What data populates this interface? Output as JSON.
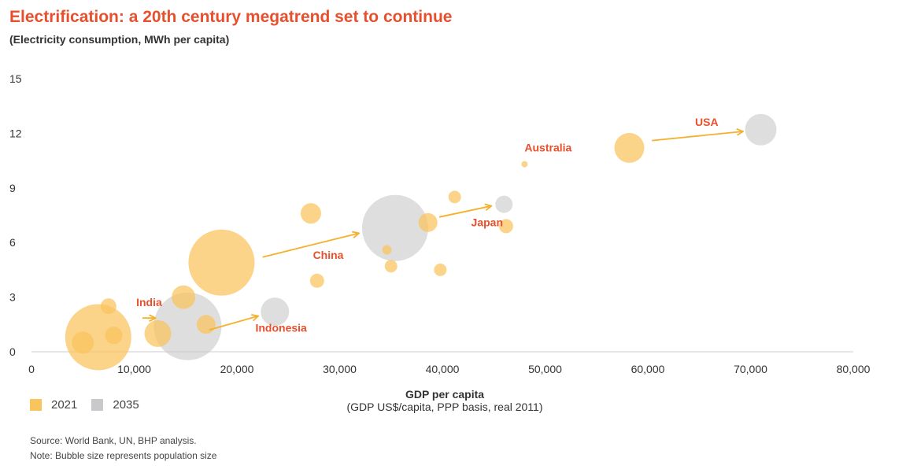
{
  "header": {
    "title": "Electrification: a 20th century megatrend set to continue",
    "subtitle": "(Electricity consumption, MWh per capita)"
  },
  "colors": {
    "y2021": "#f9c45c",
    "y2035": "#c9c9cb",
    "accent": "#e8502d",
    "arrow": "#f5b02c"
  },
  "legend": {
    "items": [
      {
        "label": "2021"
      },
      {
        "label": "2035"
      }
    ]
  },
  "axis": {
    "xlabel": "GDP per capita",
    "xlabel_sub": "(GDP US$/capita, PPP basis, real 2011)"
  },
  "footer": {
    "source": "Source: World Bank, UN, BHP analysis.",
    "note": "Note: Bubble size represents population size"
  },
  "chart_data": {
    "type": "scatter",
    "title": "Electrification: a 20th century megatrend set to continue",
    "subtitle": "(Electricity consumption, MWh per capita)",
    "xlabel": "GDP per capita",
    "xlabel_sub": "(GDP US$/capita, PPP basis, real 2011)",
    "xlim": [
      0,
      80000
    ],
    "ylim": [
      0,
      15
    ],
    "xticks": [
      0,
      10000,
      20000,
      30000,
      40000,
      50000,
      60000,
      70000,
      80000
    ],
    "xtick_labels": [
      "0",
      "10,000",
      "20,000",
      "30,000",
      "40,000",
      "50,000",
      "60,000",
      "70,000",
      "80,000"
    ],
    "yticks": [
      0,
      3,
      6,
      9,
      12,
      15
    ],
    "ytick_labels": [
      "0",
      "3",
      "6",
      "9",
      "12",
      "15"
    ],
    "bubble_size_meaning": "population",
    "series": [
      {
        "name": "2021",
        "points": [
          {
            "x": 6500,
            "y": 0.8,
            "r": 42
          },
          {
            "x": 5000,
            "y": 0.5,
            "r": 14
          },
          {
            "x": 7500,
            "y": 2.5,
            "r": 10
          },
          {
            "x": 8000,
            "y": 0.9,
            "r": 11
          },
          {
            "x": 12300,
            "y": 1.0,
            "r": 17
          },
          {
            "x": 14800,
            "y": 3.0,
            "r": 15
          },
          {
            "x": 17000,
            "y": 1.5,
            "r": 12
          },
          {
            "x": 18500,
            "y": 4.9,
            "r": 42
          },
          {
            "x": 27200,
            "y": 7.6,
            "r": 13
          },
          {
            "x": 27800,
            "y": 3.9,
            "r": 9
          },
          {
            "x": 34600,
            "y": 5.6,
            "r": 6
          },
          {
            "x": 35000,
            "y": 4.7,
            "r": 8
          },
          {
            "x": 38600,
            "y": 7.1,
            "r": 12
          },
          {
            "x": 39800,
            "y": 4.5,
            "r": 8
          },
          {
            "x": 41200,
            "y": 8.5,
            "r": 8
          },
          {
            "x": 46200,
            "y": 6.9,
            "r": 9
          },
          {
            "x": 48000,
            "y": 10.3,
            "r": 4
          },
          {
            "x": 58200,
            "y": 11.2,
            "r": 19
          }
        ]
      },
      {
        "name": "2035",
        "points": [
          {
            "x": 15200,
            "y": 1.4,
            "r": 43
          },
          {
            "x": 23700,
            "y": 2.2,
            "r": 18
          },
          {
            "x": 35400,
            "y": 6.8,
            "r": 42
          },
          {
            "x": 46000,
            "y": 8.1,
            "r": 11
          },
          {
            "x": 71000,
            "y": 12.2,
            "r": 20
          }
        ]
      }
    ],
    "arrows": [
      {
        "from": [
          10800,
          1.85
        ],
        "to": [
          12000,
          1.85
        ]
      },
      {
        "from": [
          17300,
          1.2
        ],
        "to": [
          22000,
          1.95
        ]
      },
      {
        "from": [
          22500,
          5.2
        ],
        "to": [
          31800,
          6.5
        ]
      },
      {
        "from": [
          39700,
          7.4
        ],
        "to": [
          44700,
          8.0
        ]
      },
      {
        "from": [
          60400,
          11.6
        ],
        "to": [
          69200,
          12.1
        ]
      }
    ],
    "annotations": [
      {
        "text": "India",
        "x": 10200,
        "y": 2.5
      },
      {
        "text": "Indonesia",
        "x": 21800,
        "y": 1.1
      },
      {
        "text": "China",
        "x": 27400,
        "y": 5.1
      },
      {
        "text": "Japan",
        "x": 42800,
        "y": 6.9
      },
      {
        "text": "Australia",
        "x": 48000,
        "y": 11.0
      },
      {
        "text": "USA",
        "x": 64600,
        "y": 12.4
      }
    ]
  }
}
